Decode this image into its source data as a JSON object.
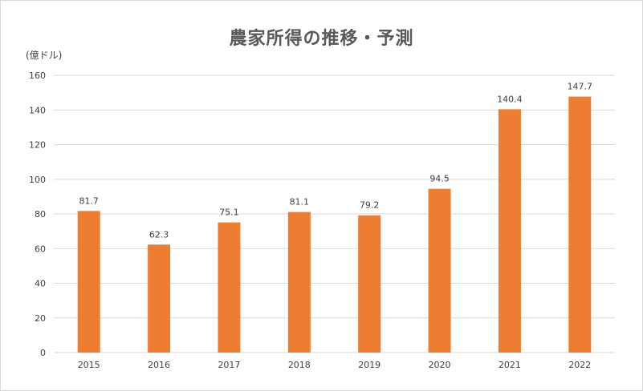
{
  "chart_data": {
    "type": "bar",
    "title": "農家所得の推移・予測",
    "ylabel": "(億ドル)",
    "xlabel": "",
    "categories": [
      "2015",
      "2016",
      "2017",
      "2018",
      "2019",
      "2020",
      "2021",
      "2022"
    ],
    "values": [
      81.7,
      62.3,
      75.1,
      81.1,
      79.2,
      94.5,
      140.4,
      147.7
    ],
    "ylim": [
      0,
      160
    ],
    "yticks": [
      0,
      20,
      40,
      60,
      80,
      100,
      120,
      140,
      160
    ],
    "grid": true,
    "legend": "none",
    "data_labels": true,
    "colors": {
      "bar": "#ED7D31",
      "grid": "#d9d9d9",
      "text": "#404040",
      "title": "#595959"
    }
  }
}
